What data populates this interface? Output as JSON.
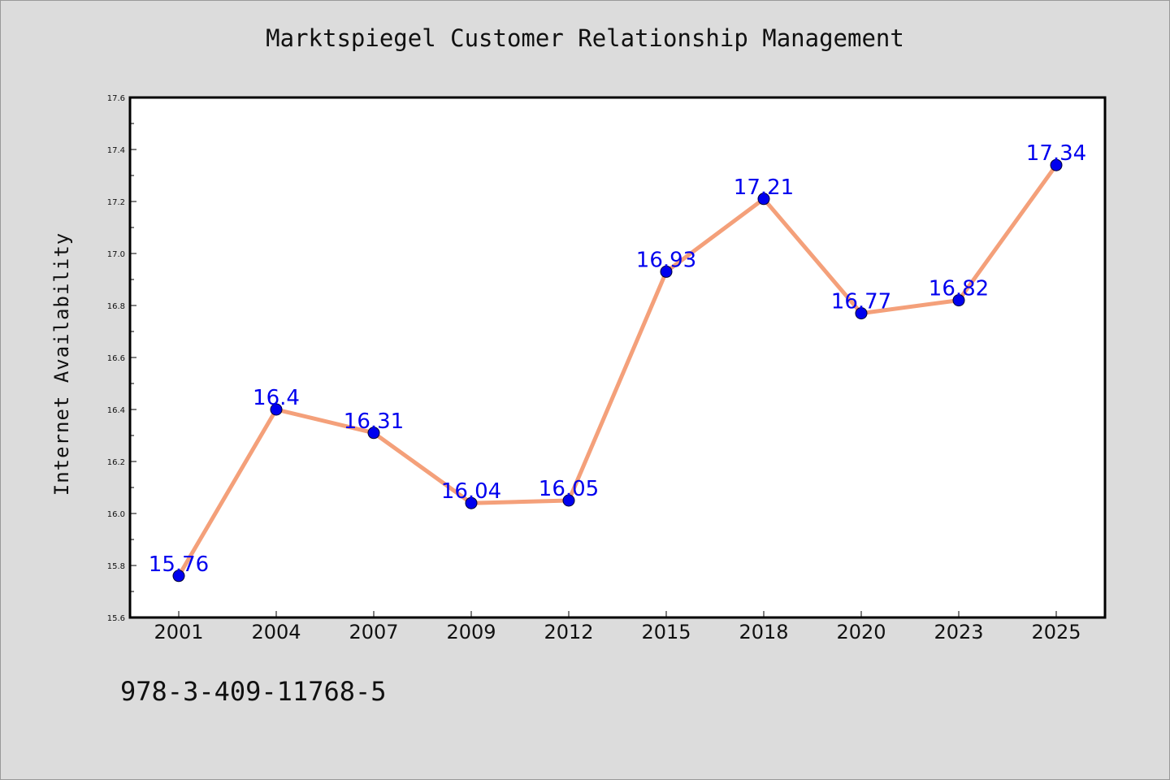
{
  "chart_data": {
    "type": "line",
    "title": "Marktspiegel Customer Relationship Management",
    "xlabel": "",
    "ylabel": "Internet Availability",
    "categories": [
      "2001",
      "2004",
      "2007",
      "2009",
      "2012",
      "2015",
      "2018",
      "2020",
      "2023",
      "2025"
    ],
    "series": [
      {
        "values": [
          15.76,
          16.4,
          16.31,
          16.04,
          16.05,
          16.93,
          17.21,
          16.77,
          16.82,
          17.34
        ],
        "data_labels": [
          "15.76",
          "16.4",
          "16.31",
          "16.04",
          "16.05",
          "16.93",
          "17.21",
          "16.77",
          "16.82",
          "17.34"
        ]
      }
    ],
    "ylim": [
      15.6,
      17.6
    ],
    "y_ticks": [
      "15.6",
      "15.8",
      "16.0",
      "16.2",
      "16.4",
      "16.6",
      "16.8",
      "17.0",
      "17.2",
      "17.4",
      "17.6"
    ],
    "grid": false,
    "legend": "none",
    "colors": {
      "line": "#f4a07a",
      "marker": "#0000ee",
      "data_label": "#0000ee",
      "background": "#dcdcdc",
      "plot_background": "#ffffff"
    }
  },
  "footer": {
    "code": "978-3-409-11768-5"
  }
}
